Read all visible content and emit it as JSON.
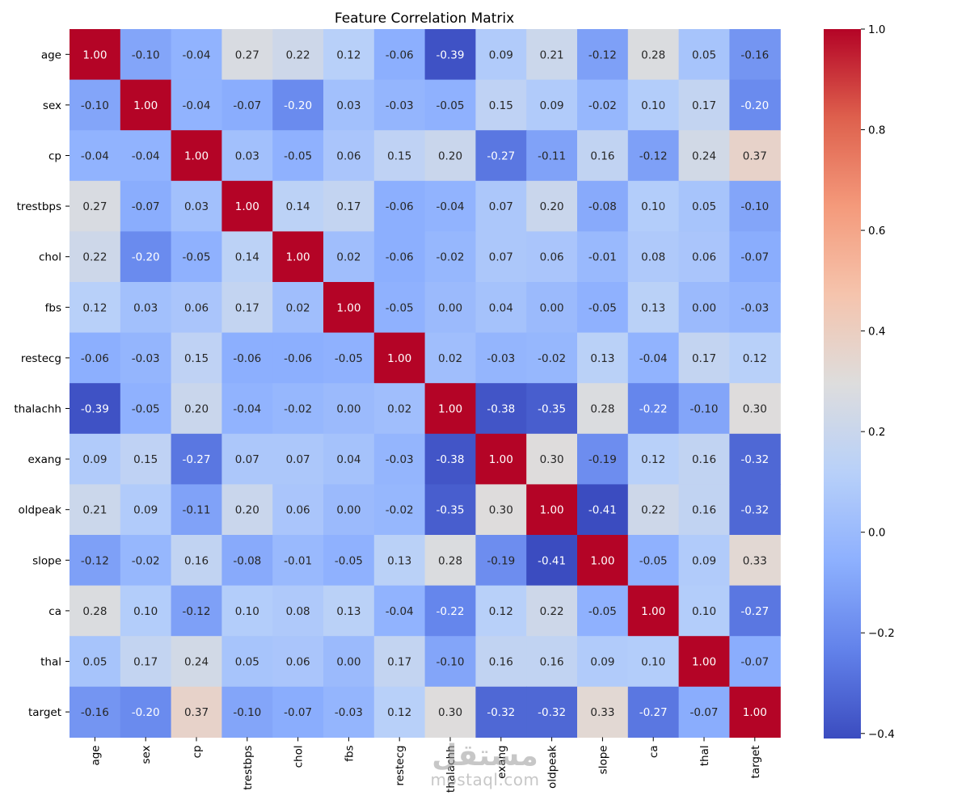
{
  "chart_data": {
    "type": "heatmap",
    "title": "Feature Correlation Matrix",
    "labels": [
      "age",
      "sex",
      "cp",
      "trestbps",
      "chol",
      "fbs",
      "restecg",
      "thalachh",
      "exang",
      "oldpeak",
      "slope",
      "ca",
      "thal",
      "target"
    ],
    "values": [
      [
        1.0,
        -0.1,
        -0.04,
        0.27,
        0.22,
        0.12,
        -0.06,
        -0.39,
        0.09,
        0.21,
        -0.12,
        0.28,
        0.05,
        -0.16
      ],
      [
        -0.1,
        1.0,
        -0.04,
        -0.07,
        -0.2,
        0.03,
        -0.03,
        -0.05,
        0.15,
        0.09,
        -0.02,
        0.1,
        0.17,
        -0.2
      ],
      [
        -0.04,
        -0.04,
        1.0,
        0.03,
        -0.05,
        0.06,
        0.15,
        0.2,
        -0.27,
        -0.11,
        0.16,
        -0.12,
        0.24,
        0.37
      ],
      [
        0.27,
        -0.07,
        0.03,
        1.0,
        0.14,
        0.17,
        -0.06,
        -0.04,
        0.07,
        0.2,
        -0.08,
        0.1,
        0.05,
        -0.1
      ],
      [
        0.22,
        -0.2,
        -0.05,
        0.14,
        1.0,
        0.02,
        -0.06,
        -0.02,
        0.07,
        0.06,
        -0.01,
        0.08,
        0.06,
        -0.07
      ],
      [
        0.12,
        0.03,
        0.06,
        0.17,
        0.02,
        1.0,
        -0.05,
        -0.0,
        0.04,
        0.0,
        -0.05,
        0.13,
        -0.0,
        -0.03
      ],
      [
        -0.06,
        -0.03,
        0.15,
        -0.06,
        -0.06,
        -0.05,
        1.0,
        0.02,
        -0.03,
        -0.02,
        0.13,
        -0.04,
        0.17,
        0.12
      ],
      [
        -0.39,
        -0.05,
        0.2,
        -0.04,
        -0.02,
        -0.0,
        0.02,
        1.0,
        -0.38,
        -0.35,
        0.28,
        -0.22,
        -0.1,
        0.3
      ],
      [
        0.09,
        0.15,
        -0.27,
        0.07,
        0.07,
        0.04,
        -0.03,
        -0.38,
        1.0,
        0.3,
        -0.19,
        0.12,
        0.16,
        -0.32
      ],
      [
        0.21,
        0.09,
        -0.11,
        0.2,
        0.06,
        0.0,
        -0.02,
        -0.35,
        0.3,
        1.0,
        -0.41,
        0.22,
        0.16,
        -0.32
      ],
      [
        -0.12,
        -0.02,
        0.16,
        -0.08,
        -0.01,
        -0.05,
        0.13,
        0.28,
        -0.19,
        -0.41,
        1.0,
        -0.05,
        0.09,
        0.33
      ],
      [
        0.28,
        0.1,
        -0.12,
        0.1,
        0.08,
        0.13,
        -0.04,
        -0.22,
        0.12,
        0.22,
        -0.05,
        1.0,
        0.1,
        -0.27
      ],
      [
        0.05,
        0.17,
        0.24,
        0.05,
        0.06,
        -0.0,
        0.17,
        -0.1,
        0.16,
        0.16,
        0.09,
        0.1,
        1.0,
        -0.07
      ],
      [
        -0.16,
        -0.2,
        0.37,
        -0.1,
        -0.07,
        -0.03,
        0.12,
        0.3,
        -0.32,
        -0.32,
        0.33,
        -0.27,
        -0.07,
        1.0
      ]
    ],
    "value_format": "2 decimals",
    "colormap": "coolwarm",
    "color_range": [
      -0.41,
      1.0
    ],
    "colorbar_ticks": [
      1.0,
      0.8,
      0.6,
      0.4,
      0.2,
      0.0,
      -0.2,
      -0.4
    ],
    "colorbar_tick_labels": [
      "1.0",
      "0.8",
      "0.6",
      "0.4",
      "0.2",
      "0.0",
      "−0.2",
      "−0.4"
    ],
    "colorbar_placement": "right"
  },
  "watermark": {
    "logo": "مستقل",
    "text": "mostaql.com"
  }
}
